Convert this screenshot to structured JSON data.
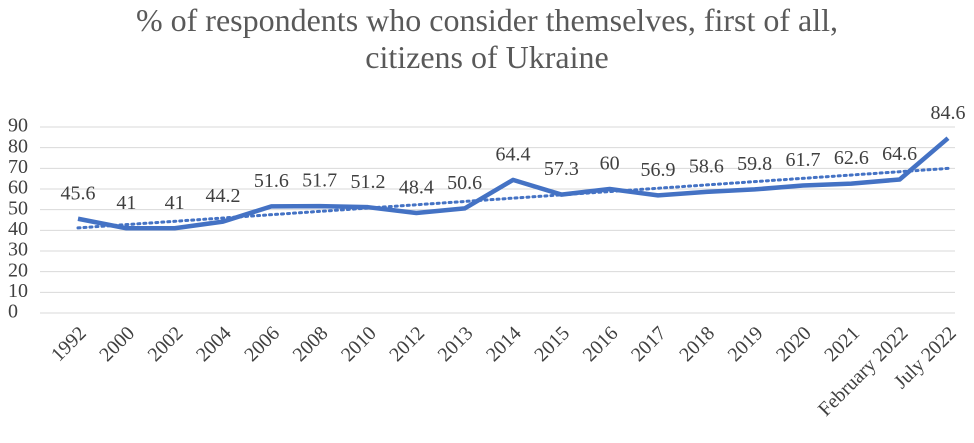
{
  "chart_data": {
    "type": "line",
    "title": "% of respondents who consider themselves, first of all, citizens of Ukraine",
    "categories": [
      "1992",
      "2000",
      "2002",
      "2004",
      "2006",
      "2008",
      "2010",
      "2012",
      "2013",
      "2014",
      "2015",
      "2016",
      "2017",
      "2018",
      "2019",
      "2020",
      "2021",
      "February 2022",
      "July 2022"
    ],
    "series": [
      {
        "color": "#4472c4",
        "values": [
          45.6,
          41,
          41,
          44.2,
          51.6,
          51.7,
          51.2,
          48.4,
          50.6,
          64.4,
          57.3,
          60,
          56.9,
          58.6,
          59.8,
          61.7,
          62.6,
          64.6,
          84.6
        ]
      }
    ],
    "ylim": [
      0,
      90
    ],
    "yticks": [
      0,
      10,
      20,
      30,
      40,
      50,
      60,
      70,
      80,
      90
    ],
    "grid": true,
    "trendline": "linear",
    "data_labels": true
  }
}
